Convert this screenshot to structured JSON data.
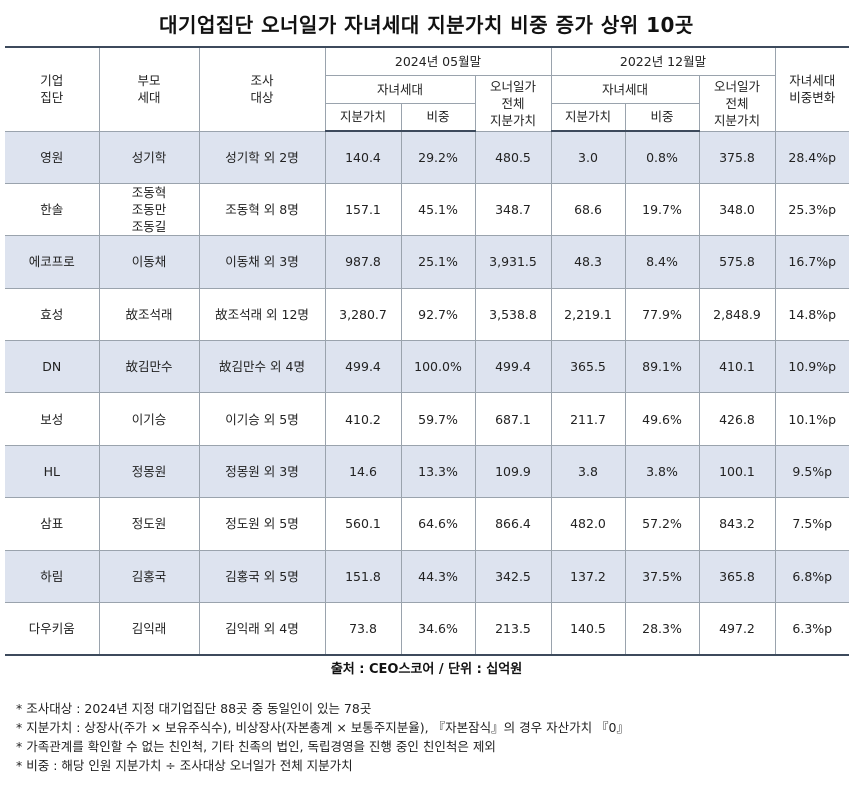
{
  "title": "대기업집단 오너일가 자녀세대 지분가치 비중 증가 상위 10곳",
  "headers": {
    "group": "기업\n집단",
    "parent": "부모\n세대",
    "target": "조사\n대상",
    "period_2024": "2024년  05월말",
    "period_2022": "2022년  12월말",
    "children_gen": "자녀세대",
    "owner_total": "오너일가\n전체\n지분가치",
    "equity_value": "지분가치",
    "ratio": "비중",
    "change": "자녀세대\n비중변화"
  },
  "rows": [
    {
      "group": "영원",
      "parent": "성기학",
      "target": "성기학 외 2명",
      "v2024": "140.4",
      "r2024": "29.2%",
      "t2024": "480.5",
      "v2022": "3.0",
      "r2022": "0.8%",
      "t2022": "375.8",
      "change": "28.4%p"
    },
    {
      "group": "한솔",
      "parent": "조동혁\n조동만\n조동길",
      "target": "조동혁 외 8명",
      "v2024": "157.1",
      "r2024": "45.1%",
      "t2024": "348.7",
      "v2022": "68.6",
      "r2022": "19.7%",
      "t2022": "348.0",
      "change": "25.3%p"
    },
    {
      "group": "에코프로",
      "parent": "이동채",
      "target": "이동채 외 3명",
      "v2024": "987.8",
      "r2024": "25.1%",
      "t2024": "3,931.5",
      "v2022": "48.3",
      "r2022": "8.4%",
      "t2022": "575.8",
      "change": "16.7%p"
    },
    {
      "group": "효성",
      "parent": "故조석래",
      "target": "故조석래 외 12명",
      "v2024": "3,280.7",
      "r2024": "92.7%",
      "t2024": "3,538.8",
      "v2022": "2,219.1",
      "r2022": "77.9%",
      "t2022": "2,848.9",
      "change": "14.8%p"
    },
    {
      "group": "DN",
      "parent": "故김만수",
      "target": "故김만수 외 4명",
      "v2024": "499.4",
      "r2024": "100.0%",
      "t2024": "499.4",
      "v2022": "365.5",
      "r2022": "89.1%",
      "t2022": "410.1",
      "change": "10.9%p"
    },
    {
      "group": "보성",
      "parent": "이기승",
      "target": "이기승 외 5명",
      "v2024": "410.2",
      "r2024": "59.7%",
      "t2024": "687.1",
      "v2022": "211.7",
      "r2022": "49.6%",
      "t2022": "426.8",
      "change": "10.1%p"
    },
    {
      "group": "HL",
      "parent": "정몽원",
      "target": "정몽원 외 3명",
      "v2024": "14.6",
      "r2024": "13.3%",
      "t2024": "109.9",
      "v2022": "3.8",
      "r2022": "3.8%",
      "t2022": "100.1",
      "change": "9.5%p"
    },
    {
      "group": "삼표",
      "parent": "정도원",
      "target": "정도원 외 5명",
      "v2024": "560.1",
      "r2024": "64.6%",
      "t2024": "866.4",
      "v2022": "482.0",
      "r2022": "57.2%",
      "t2022": "843.2",
      "change": "7.5%p"
    },
    {
      "group": "하림",
      "parent": "김홍국",
      "target": "김홍국 외 5명",
      "v2024": "151.8",
      "r2024": "44.3%",
      "t2024": "342.5",
      "v2022": "137.2",
      "r2022": "37.5%",
      "t2022": "365.8",
      "change": "6.8%p"
    },
    {
      "group": "다우키움",
      "parent": "김익래",
      "target": "김익래 외 4명",
      "v2024": "73.8",
      "r2024": "34.6%",
      "t2024": "213.5",
      "v2022": "140.5",
      "r2022": "28.3%",
      "t2022": "497.2",
      "change": "6.3%p"
    }
  ],
  "source": "출처 : CEO스코어 / 단위 : 십억원",
  "notes": [
    "* 조사대상 : 2024년 지정 대기업집단 88곳 중 동일인이 있는 78곳",
    "* 지분가치 : 상장사(주가 × 보유주식수), 비상장사(자본총계 × 보통주지분율), 『자본잠식』의 경우 자산가치 『0』",
    "* 가족관계를 확인할 수 없는 친인척, 기타 친족의 법인, 독립경영을 진행 중인 친인척은 제외",
    "* 비중 : 해당 인원 지분가치 ÷ 조사대상 오너일가 전체 지분가치"
  ],
  "colors": {
    "row_shade": "#dde3ef",
    "rule": "#3d4a5c",
    "grid": "#9aa3ad"
  }
}
